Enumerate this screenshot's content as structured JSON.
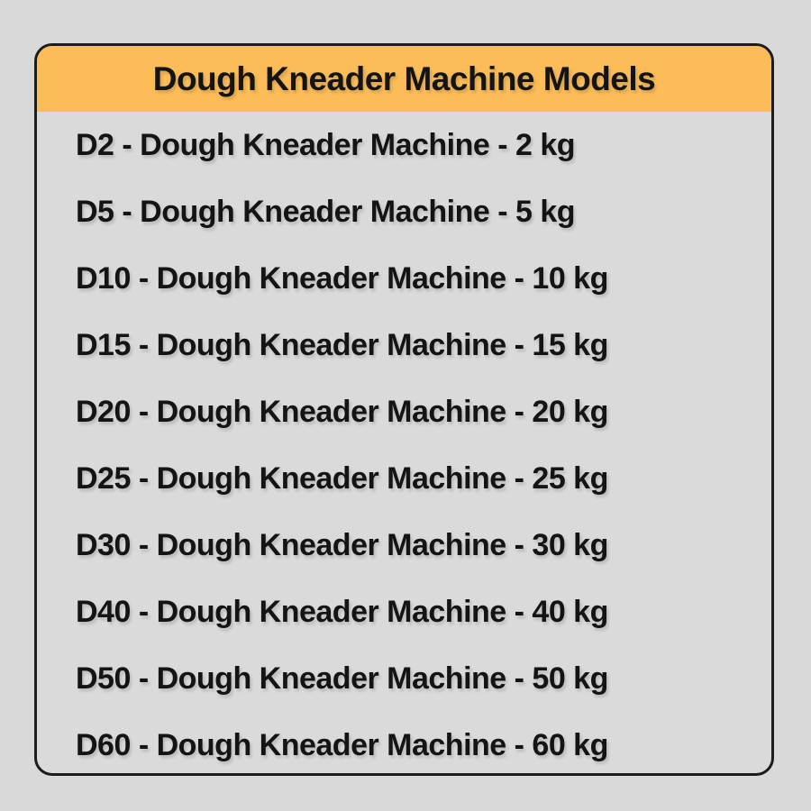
{
  "page": {
    "background_color": "#d9d9d9"
  },
  "card": {
    "border_color": "#1c1c1c",
    "header": {
      "title": "Dough Kneader Machine Models",
      "background_color": "#fcbd59",
      "text_color": "#141414"
    },
    "models": [
      "D2 - Dough Kneader Machine - 2 kg",
      "D5 - Dough Kneader Machine - 5 kg",
      "D10 - Dough Kneader Machine - 10 kg",
      "D15 - Dough Kneader Machine - 15 kg",
      "D20 - Dough Kneader Machine - 20 kg",
      "D25 - Dough Kneader Machine - 25 kg",
      "D30 - Dough Kneader Machine - 30 kg",
      "D40 - Dough Kneader Machine - 40 kg",
      "D50 - Dough Kneader Machine - 50 kg",
      "D60 - Dough Kneader Machine - 60 kg"
    ]
  }
}
